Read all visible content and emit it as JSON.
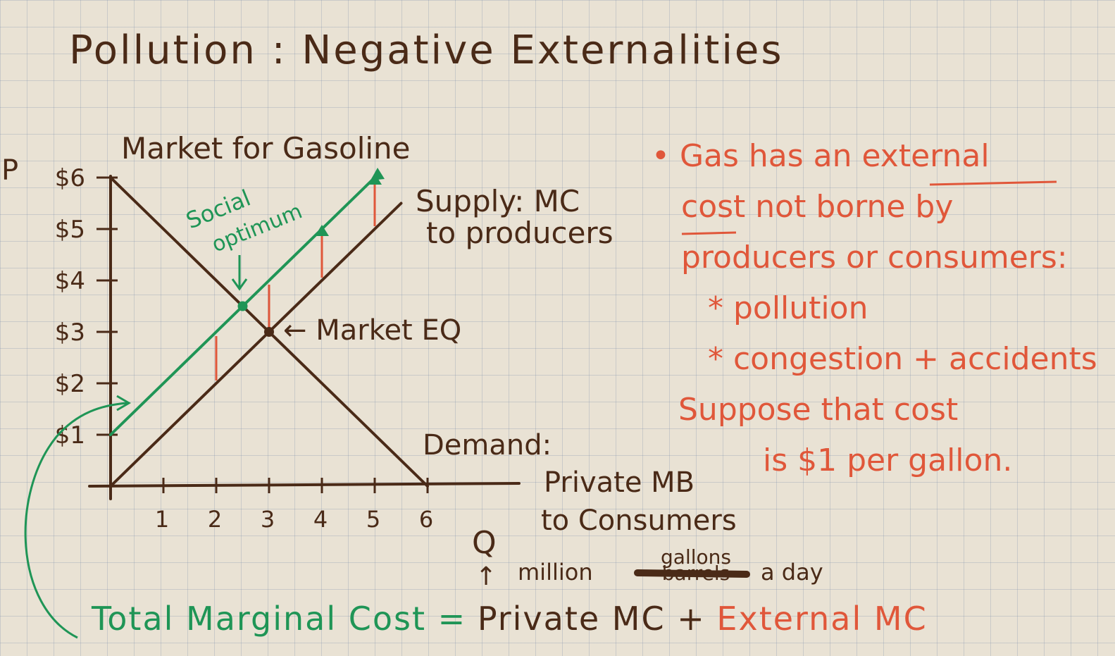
{
  "title": "Pollution : Negative Externalities",
  "chart_data": {
    "type": "line",
    "title": "Market for Gasoline",
    "ylabel": "P",
    "xlabel": "Q",
    "x_unit_note": "million gallons a day",
    "x_unit_struck": "barrels",
    "xlim": [
      0,
      6
    ],
    "ylim": [
      0,
      6
    ],
    "x_ticks": [
      "1",
      "2",
      "3",
      "4",
      "5",
      "6"
    ],
    "y_ticks": [
      "$1",
      "$2",
      "$3",
      "$4",
      "$5",
      "$6"
    ],
    "series": [
      {
        "name": "Demand: Private MB to Consumers",
        "color": "#4a2a17",
        "x": [
          0,
          6
        ],
        "y": [
          6,
          0
        ]
      },
      {
        "name": "Supply: MC to producers",
        "color": "#4a2a17",
        "x": [
          0,
          5.5
        ],
        "y": [
          0,
          5.5
        ]
      },
      {
        "name": "Total Marginal Cost",
        "color": "#1f9556",
        "x": [
          0,
          5
        ],
        "y": [
          1,
          6
        ]
      }
    ],
    "external_cost_gaps": [
      {
        "x": 2,
        "from": 2,
        "to": 3
      },
      {
        "x": 3,
        "from": 3,
        "to": 4
      },
      {
        "x": 4,
        "from": 4,
        "to": 5
      },
      {
        "x": 5,
        "from": 5,
        "to": 6
      }
    ],
    "points": [
      {
        "label": "Social optimum",
        "x": 2.5,
        "y": 3.5,
        "color": "#1f9556"
      },
      {
        "label": "Market EQ",
        "x": 3,
        "y": 3,
        "color": "#4a2a17"
      }
    ],
    "annotations": {
      "supply_label": [
        "Supply: MC",
        "to producers"
      ],
      "demand_label": [
        "Demand:",
        "Private MB",
        "to Consumers"
      ],
      "social_optimum_label": [
        "Social",
        "optimum"
      ],
      "market_eq_label": "← Market EQ"
    }
  },
  "notes": {
    "lines": [
      "• Gas has an external",
      "cost not borne by",
      "producers or consumers:",
      "* pollution",
      "* congestion + accidents",
      "Suppose that cost",
      "is $1 per gallon."
    ]
  },
  "formula": {
    "part1": "Total Marginal Cost =",
    "part2": "Private MC +",
    "part3": "External MC"
  },
  "colors": {
    "brown": "#4a2a17",
    "orange": "#e0573a",
    "green": "#1f9556"
  }
}
